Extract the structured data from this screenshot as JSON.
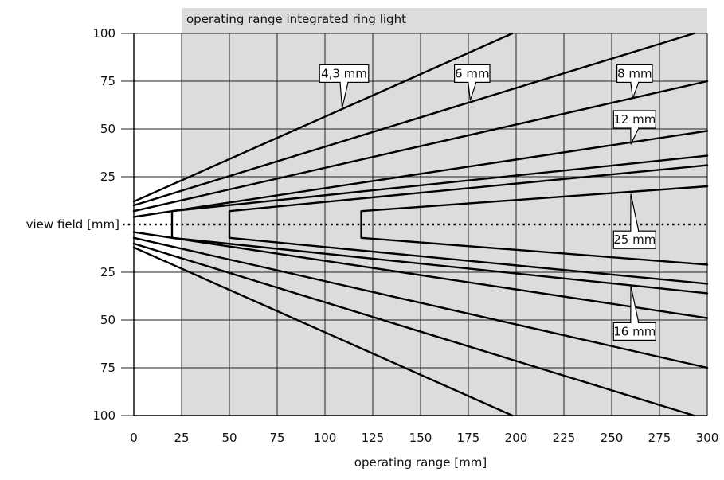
{
  "chart_data": {
    "type": "line",
    "xlabel": "operating range [mm]",
    "ylabel": "view field [mm]",
    "xlim": [
      0,
      300
    ],
    "ylim": [
      -100,
      100
    ],
    "x_ticks": [
      "0",
      "25",
      "50",
      "75",
      "100",
      "125",
      "150",
      "175",
      "200",
      "225",
      "250",
      "275",
      "300"
    ],
    "y_ticks": [
      "100",
      "75",
      "50",
      "25",
      "",
      "25",
      "50",
      "75",
      "100"
    ],
    "y_tick_values": [
      100,
      75,
      50,
      25,
      0,
      -25,
      -50,
      -75,
      -100
    ],
    "grid": true,
    "shaded_region": {
      "label": "operating range integrated ring light",
      "x_start": 25,
      "x_end": 300,
      "color": "#dcdcdc"
    },
    "centerline": {
      "style": "dotted",
      "y": 0
    },
    "series": [
      {
        "name": "4,3 mm",
        "x": [
          0,
          198
        ],
        "upper": [
          12,
          100
        ],
        "lower": [
          -12,
          -100
        ]
      },
      {
        "name": "6 mm",
        "x": [
          0,
          293
        ],
        "upper": [
          10,
          100
        ],
        "lower": [
          -10,
          -100
        ]
      },
      {
        "name": "8 mm",
        "x": [
          0,
          300
        ],
        "upper": [
          7,
          75
        ],
        "lower": [
          -7,
          -75
        ]
      },
      {
        "name": "12 mm",
        "x": [
          0,
          300
        ],
        "upper": [
          4,
          49
        ],
        "lower": [
          -4,
          -49
        ]
      },
      {
        "name": "16 mm",
        "x": [
          20,
          300
        ],
        "upper": [
          7,
          36
        ],
        "lower": [
          -7,
          -36
        ]
      },
      {
        "name": "25 mm",
        "x": [
          50,
          300
        ],
        "upper": [
          7,
          31
        ],
        "lower": [
          -7,
          -31
        ]
      },
      {
        "name": "",
        "x": [
          119,
          300
        ],
        "upper": [
          7,
          20
        ],
        "lower": [
          -7,
          -21
        ]
      }
    ],
    "annotations": [
      {
        "text": "4,3 mm",
        "x": 110,
        "y": 79,
        "tip_x": 109,
        "tip_y": 61
      },
      {
        "text": "6 mm",
        "x": 177,
        "y": 79,
        "tip_x": 176,
        "tip_y": 65
      },
      {
        "text": "8 mm",
        "x": 262,
        "y": 79,
        "tip_x": 261,
        "tip_y": 66
      },
      {
        "text": "12 mm",
        "x": 262,
        "y": 55,
        "tip_x": 260,
        "tip_y": 42
      },
      {
        "text": "25 mm",
        "x": 262,
        "y": -8,
        "tip_x": 260,
        "tip_y": 16
      },
      {
        "text": "16 mm",
        "x": 262,
        "y": -56,
        "tip_x": 260,
        "tip_y": -32
      }
    ]
  }
}
